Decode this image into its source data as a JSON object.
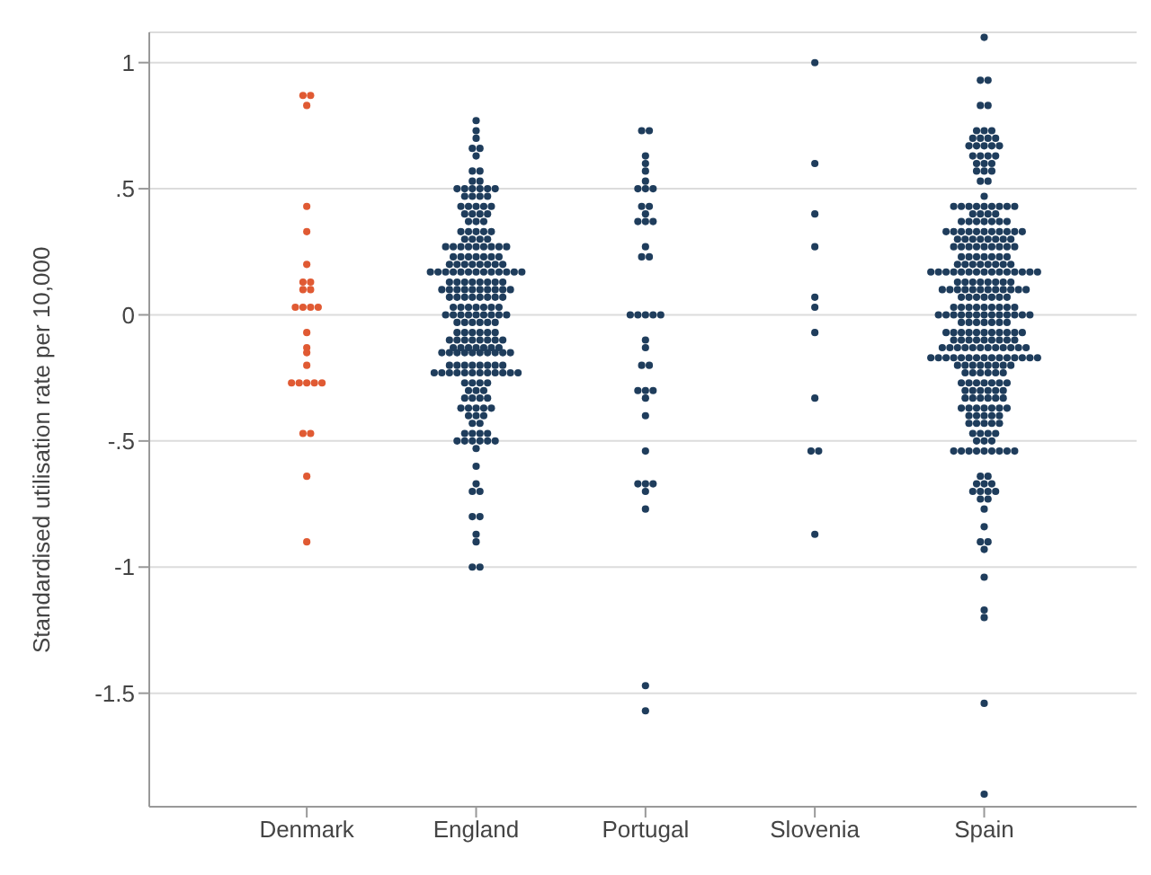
{
  "chart_data": {
    "type": "scatter",
    "ylabel": "Standardised utilisation rate per 10,000",
    "categories": [
      "Denmark",
      "England",
      "Portugal",
      "Slovenia",
      "Spain"
    ],
    "ylim": [
      -1.95,
      1.12
    ],
    "yticks": [
      {
        "value": -1.5,
        "label": "-1.5"
      },
      -1,
      {
        "value": -0.5,
        "label": "-.5"
      },
      0,
      {
        "value": 0.5,
        "label": ".5"
      },
      1
    ],
    "grid": "y",
    "legend": false,
    "marker": "circle",
    "series": [
      {
        "color": "#e05a33",
        "x": [
          "Denmark",
          "Denmark",
          "Denmark",
          "Denmark",
          "Denmark",
          "Denmark",
          "Denmark",
          "Denmark",
          "Denmark",
          "Denmark",
          "Denmark",
          "Denmark",
          "Denmark",
          "Denmark",
          "Denmark",
          "Denmark",
          "Denmark",
          "Denmark",
          "Denmark",
          "Denmark",
          "Denmark",
          "Denmark",
          "Denmark",
          "Denmark",
          "Denmark",
          "Denmark",
          "Denmark"
        ],
        "values": [
          0.87,
          0.87,
          0.83,
          0.43,
          0.33,
          0.2,
          0.13,
          0.13,
          0.1,
          0.1,
          0.03,
          0.03,
          0.03,
          0.03,
          -0.07,
          -0.13,
          -0.15,
          -0.2,
          -0.27,
          -0.27,
          -0.27,
          -0.27,
          -0.27,
          -0.47,
          -0.47,
          -0.64,
          -0.9
        ]
      },
      {
        "color": "#1f3d5c",
        "x": [
          "England",
          "England",
          "England",
          "England",
          "England",
          "England",
          "England",
          "England",
          "England",
          "England",
          "England",
          "England",
          "England",
          "England",
          "England",
          "England",
          "England",
          "England",
          "England",
          "England",
          "England",
          "England",
          "England",
          "England",
          "England",
          "England",
          "England",
          "England",
          "England",
          "England",
          "England",
          "England",
          "England",
          "England",
          "England",
          "England",
          "England",
          "England",
          "England",
          "England",
          "England",
          "England",
          "England",
          "England",
          "England",
          "England",
          "England",
          "England",
          "England",
          "England",
          "England",
          "England",
          "England",
          "England",
          "England",
          "England",
          "England",
          "England",
          "England",
          "England",
          "England",
          "England",
          "England",
          "England",
          "England",
          "England",
          "England",
          "England",
          "England",
          "England",
          "England",
          "England",
          "England",
          "England",
          "England",
          "England",
          "England",
          "England",
          "England",
          "England",
          "England",
          "England",
          "England",
          "England",
          "England",
          "England",
          "England",
          "England",
          "England",
          "England",
          "England",
          "England",
          "England",
          "England",
          "England",
          "England",
          "England",
          "England",
          "England",
          "England",
          "England",
          "England",
          "England",
          "England",
          "England",
          "England",
          "England",
          "England",
          "England",
          "England",
          "England",
          "England",
          "England",
          "England",
          "England",
          "England",
          "England",
          "England",
          "England",
          "England",
          "England",
          "England",
          "England",
          "England",
          "England",
          "England",
          "England",
          "England",
          "England",
          "England",
          "England",
          "England",
          "England",
          "England",
          "England",
          "England",
          "England",
          "England",
          "England",
          "England",
          "England",
          "England",
          "England",
          "England",
          "England",
          "England",
          "England",
          "England",
          "England",
          "England",
          "England",
          "England",
          "England",
          "England",
          "England",
          "England",
          "England",
          "England",
          "England",
          "England",
          "England",
          "England",
          "England",
          "England",
          "England",
          "England",
          "England",
          "England",
          "England",
          "England",
          "England",
          "England",
          "England",
          "England",
          "England",
          "England",
          "England",
          "England",
          "England",
          "England",
          "England",
          "England",
          "England",
          "England",
          "England",
          "England",
          "England",
          "England",
          "England",
          "England",
          "England",
          "England",
          "England",
          "England",
          "England",
          "England",
          "England",
          "England",
          "England",
          "England",
          "England",
          "England",
          "England",
          "England",
          "England",
          "England",
          "England",
          "England",
          "England",
          "England",
          "England",
          "England",
          "England",
          "England",
          "England",
          "England",
          "England",
          "England",
          "England"
        ],
        "values": [
          0.77,
          0.73,
          0.7,
          0.66,
          0.66,
          0.63,
          0.57,
          0.57,
          0.53,
          0.53,
          0.5,
          0.5,
          0.5,
          0.5,
          0.5,
          0.5,
          0.47,
          0.47,
          0.47,
          0.47,
          0.43,
          0.43,
          0.43,
          0.43,
          0.43,
          0.4,
          0.4,
          0.4,
          0.4,
          0.37,
          0.37,
          0.37,
          0.33,
          0.33,
          0.33,
          0.33,
          0.33,
          0.3,
          0.3,
          0.3,
          0.3,
          0.27,
          0.27,
          0.27,
          0.27,
          0.27,
          0.27,
          0.27,
          0.27,
          0.27,
          0.23,
          0.23,
          0.23,
          0.23,
          0.23,
          0.23,
          0.23,
          0.2,
          0.2,
          0.2,
          0.2,
          0.2,
          0.2,
          0.2,
          0.2,
          0.17,
          0.17,
          0.17,
          0.17,
          0.17,
          0.17,
          0.17,
          0.17,
          0.17,
          0.17,
          0.17,
          0.17,
          0.17,
          0.13,
          0.13,
          0.13,
          0.13,
          0.13,
          0.13,
          0.13,
          0.13,
          0.1,
          0.1,
          0.1,
          0.1,
          0.1,
          0.1,
          0.1,
          0.1,
          0.1,
          0.1,
          0.07,
          0.07,
          0.07,
          0.07,
          0.07,
          0.07,
          0.07,
          0.07,
          0.03,
          0.03,
          0.03,
          0.03,
          0.03,
          0.03,
          0.03,
          0,
          0,
          0,
          0,
          0,
          0,
          0,
          0,
          0,
          -0.03,
          -0.03,
          -0.03,
          -0.03,
          -0.03,
          -0.03,
          -0.07,
          -0.07,
          -0.07,
          -0.07,
          -0.07,
          -0.07,
          -0.1,
          -0.1,
          -0.1,
          -0.1,
          -0.1,
          -0.1,
          -0.1,
          -0.1,
          -0.13,
          -0.13,
          -0.13,
          -0.13,
          -0.13,
          -0.13,
          -0.13,
          -0.15,
          -0.15,
          -0.15,
          -0.15,
          -0.15,
          -0.15,
          -0.15,
          -0.15,
          -0.15,
          -0.15,
          -0.2,
          -0.2,
          -0.2,
          -0.2,
          -0.2,
          -0.2,
          -0.2,
          -0.2,
          -0.23,
          -0.23,
          -0.23,
          -0.23,
          -0.23,
          -0.23,
          -0.23,
          -0.23,
          -0.23,
          -0.23,
          -0.23,
          -0.23,
          -0.27,
          -0.27,
          -0.27,
          -0.27,
          -0.3,
          -0.3,
          -0.3,
          -0.33,
          -0.33,
          -0.33,
          -0.33,
          -0.37,
          -0.37,
          -0.37,
          -0.37,
          -0.37,
          -0.4,
          -0.4,
          -0.4,
          -0.43,
          -0.43,
          -0.47,
          -0.47,
          -0.47,
          -0.47,
          -0.5,
          -0.5,
          -0.5,
          -0.5,
          -0.5,
          -0.5,
          -0.53,
          -0.6,
          -0.67,
          -0.7,
          -0.7,
          -0.8,
          -0.8,
          -0.87,
          -0.9,
          -1,
          -1
        ]
      },
      {
        "color": "#1f3d5c",
        "x": [
          "Portugal",
          "Portugal",
          "Portugal",
          "Portugal",
          "Portugal",
          "Portugal",
          "Portugal",
          "Portugal",
          "Portugal",
          "Portugal",
          "Portugal",
          "Portugal",
          "Portugal",
          "Portugal",
          "Portugal",
          "Portugal",
          "Portugal",
          "Portugal",
          "Portugal",
          "Portugal",
          "Portugal",
          "Portugal",
          "Portugal",
          "Portugal",
          "Portugal",
          "Portugal",
          "Portugal",
          "Portugal",
          "Portugal",
          "Portugal",
          "Portugal",
          "Portugal",
          "Portugal",
          "Portugal",
          "Portugal",
          "Portugal",
          "Portugal",
          "Portugal",
          "Portugal",
          "Portugal"
        ],
        "values": [
          0.73,
          0.73,
          0.63,
          0.6,
          0.57,
          0.53,
          0.5,
          0.5,
          0.5,
          0.43,
          0.43,
          0.4,
          0.37,
          0.37,
          0.37,
          0.27,
          0.23,
          0.23,
          0,
          0,
          0,
          0,
          0,
          -0.1,
          -0.13,
          -0.2,
          -0.2,
          -0.3,
          -0.3,
          -0.3,
          -0.33,
          -0.4,
          -0.54,
          -0.67,
          -0.67,
          -0.67,
          -0.7,
          -0.77,
          -1.47,
          -1.57
        ]
      },
      {
        "color": "#1f3d5c",
        "x": [
          "Slovenia",
          "Slovenia",
          "Slovenia",
          "Slovenia",
          "Slovenia",
          "Slovenia",
          "Slovenia",
          "Slovenia",
          "Slovenia",
          "Slovenia",
          "Slovenia"
        ],
        "values": [
          1,
          0.6,
          0.4,
          0.27,
          0.07,
          0.03,
          -0.07,
          -0.33,
          -0.54,
          -0.54,
          -0.87
        ]
      },
      {
        "color": "#1f3d5c",
        "x": [
          "Spain",
          "Spain",
          "Spain",
          "Spain",
          "Spain",
          "Spain",
          "Spain",
          "Spain",
          "Spain",
          "Spain",
          "Spain",
          "Spain",
          "Spain",
          "Spain",
          "Spain",
          "Spain",
          "Spain",
          "Spain",
          "Spain",
          "Spain",
          "Spain",
          "Spain",
          "Spain",
          "Spain",
          "Spain",
          "Spain",
          "Spain",
          "Spain",
          "Spain",
          "Spain",
          "Spain",
          "Spain",
          "Spain",
          "Spain",
          "Spain",
          "Spain",
          "Spain",
          "Spain",
          "Spain",
          "Spain",
          "Spain",
          "Spain",
          "Spain",
          "Spain",
          "Spain",
          "Spain",
          "Spain",
          "Spain",
          "Spain",
          "Spain",
          "Spain",
          "Spain",
          "Spain",
          "Spain",
          "Spain",
          "Spain",
          "Spain",
          "Spain",
          "Spain",
          "Spain",
          "Spain",
          "Spain",
          "Spain",
          "Spain",
          "Spain",
          "Spain",
          "Spain",
          "Spain",
          "Spain",
          "Spain",
          "Spain",
          "Spain",
          "Spain",
          "Spain",
          "Spain",
          "Spain",
          "Spain",
          "Spain",
          "Spain",
          "Spain",
          "Spain",
          "Spain",
          "Spain",
          "Spain",
          "Spain",
          "Spain",
          "Spain",
          "Spain",
          "Spain",
          "Spain",
          "Spain",
          "Spain",
          "Spain",
          "Spain",
          "Spain",
          "Spain",
          "Spain",
          "Spain",
          "Spain",
          "Spain",
          "Spain",
          "Spain",
          "Spain",
          "Spain",
          "Spain",
          "Spain",
          "Spain",
          "Spain",
          "Spain",
          "Spain",
          "Spain",
          "Spain",
          "Spain",
          "Spain",
          "Spain",
          "Spain",
          "Spain",
          "Spain",
          "Spain",
          "Spain",
          "Spain",
          "Spain",
          "Spain",
          "Spain",
          "Spain",
          "Spain",
          "Spain",
          "Spain",
          "Spain",
          "Spain",
          "Spain",
          "Spain",
          "Spain",
          "Spain",
          "Spain",
          "Spain",
          "Spain",
          "Spain",
          "Spain",
          "Spain",
          "Spain",
          "Spain",
          "Spain",
          "Spain",
          "Spain",
          "Spain",
          "Spain",
          "Spain",
          "Spain",
          "Spain",
          "Spain",
          "Spain",
          "Spain",
          "Spain",
          "Spain",
          "Spain",
          "Spain",
          "Spain",
          "Spain",
          "Spain",
          "Spain",
          "Spain",
          "Spain",
          "Spain",
          "Spain",
          "Spain",
          "Spain",
          "Spain",
          "Spain",
          "Spain",
          "Spain",
          "Spain",
          "Spain",
          "Spain",
          "Spain",
          "Spain",
          "Spain",
          "Spain",
          "Spain",
          "Spain",
          "Spain",
          "Spain",
          "Spain",
          "Spain",
          "Spain",
          "Spain",
          "Spain",
          "Spain",
          "Spain",
          "Spain",
          "Spain",
          "Spain",
          "Spain",
          "Spain",
          "Spain",
          "Spain",
          "Spain",
          "Spain",
          "Spain",
          "Spain",
          "Spain",
          "Spain",
          "Spain",
          "Spain",
          "Spain",
          "Spain",
          "Spain",
          "Spain",
          "Spain",
          "Spain",
          "Spain",
          "Spain",
          "Spain",
          "Spain",
          "Spain",
          "Spain",
          "Spain",
          "Spain",
          "Spain",
          "Spain",
          "Spain",
          "Spain",
          "Spain",
          "Spain",
          "Spain",
          "Spain",
          "Spain",
          "Spain",
          "Spain",
          "Spain",
          "Spain",
          "Spain",
          "Spain",
          "Spain",
          "Spain",
          "Spain",
          "Spain",
          "Spain",
          "Spain",
          "Spain",
          "Spain",
          "Spain",
          "Spain",
          "Spain",
          "Spain",
          "Spain",
          "Spain",
          "Spain",
          "Spain",
          "Spain",
          "Spain",
          "Spain",
          "Spain",
          "Spain",
          "Spain",
          "Spain",
          "Spain",
          "Spain",
          "Spain",
          "Spain",
          "Spain",
          "Spain",
          "Spain",
          "Spain",
          "Spain",
          "Spain",
          "Spain",
          "Spain",
          "Spain",
          "Spain",
          "Spain",
          "Spain",
          "Spain",
          "Spain",
          "Spain",
          "Spain",
          "Spain",
          "Spain",
          "Spain",
          "Spain",
          "Spain",
          "Spain",
          "Spain",
          "Spain",
          "Spain",
          "Spain",
          "Spain",
          "Spain",
          "Spain",
          "Spain",
          "Spain",
          "Spain",
          "Spain",
          "Spain",
          "Spain",
          "Spain",
          "Spain",
          "Spain"
        ],
        "values": [
          1.1,
          0.93,
          0.93,
          0.83,
          0.83,
          0.73,
          0.73,
          0.73,
          0.7,
          0.7,
          0.7,
          0.7,
          0.67,
          0.67,
          0.67,
          0.67,
          0.67,
          0.63,
          0.63,
          0.63,
          0.63,
          0.6,
          0.6,
          0.6,
          0.57,
          0.57,
          0.57,
          0.53,
          0.53,
          0.47,
          0.43,
          0.43,
          0.43,
          0.43,
          0.43,
          0.43,
          0.43,
          0.43,
          0.43,
          0.4,
          0.4,
          0.4,
          0.4,
          0.37,
          0.37,
          0.37,
          0.37,
          0.37,
          0.37,
          0.37,
          0.33,
          0.33,
          0.33,
          0.33,
          0.33,
          0.33,
          0.33,
          0.33,
          0.33,
          0.33,
          0.33,
          0.3,
          0.3,
          0.3,
          0.3,
          0.3,
          0.3,
          0.3,
          0.3,
          0.27,
          0.27,
          0.27,
          0.27,
          0.27,
          0.27,
          0.27,
          0.27,
          0.27,
          0.23,
          0.23,
          0.23,
          0.23,
          0.23,
          0.23,
          0.23,
          0.2,
          0.2,
          0.2,
          0.2,
          0.2,
          0.2,
          0.2,
          0.2,
          0.17,
          0.17,
          0.17,
          0.17,
          0.17,
          0.17,
          0.17,
          0.17,
          0.17,
          0.17,
          0.17,
          0.17,
          0.17,
          0.17,
          0.17,
          0.13,
          0.13,
          0.13,
          0.13,
          0.13,
          0.13,
          0.13,
          0.13,
          0.1,
          0.1,
          0.1,
          0.1,
          0.1,
          0.1,
          0.1,
          0.1,
          0.1,
          0.1,
          0.1,
          0.1,
          0.07,
          0.07,
          0.07,
          0.07,
          0.07,
          0.07,
          0.07,
          0.03,
          0.03,
          0.03,
          0.03,
          0.03,
          0.03,
          0.03,
          0.03,
          0.03,
          0,
          0,
          0,
          0,
          0,
          0,
          0,
          0,
          0,
          0,
          0,
          0,
          0,
          -0.03,
          -0.03,
          -0.03,
          -0.03,
          -0.03,
          -0.03,
          -0.03,
          -0.07,
          -0.07,
          -0.07,
          -0.07,
          -0.07,
          -0.07,
          -0.07,
          -0.07,
          -0.07,
          -0.07,
          -0.07,
          -0.1,
          -0.1,
          -0.1,
          -0.1,
          -0.1,
          -0.1,
          -0.1,
          -0.1,
          -0.1,
          -0.13,
          -0.13,
          -0.13,
          -0.13,
          -0.13,
          -0.13,
          -0.13,
          -0.13,
          -0.13,
          -0.13,
          -0.13,
          -0.13,
          -0.17,
          -0.17,
          -0.17,
          -0.17,
          -0.17,
          -0.17,
          -0.17,
          -0.17,
          -0.17,
          -0.17,
          -0.17,
          -0.17,
          -0.17,
          -0.17,
          -0.17,
          -0.2,
          -0.2,
          -0.2,
          -0.2,
          -0.2,
          -0.2,
          -0.2,
          -0.2,
          -0.23,
          -0.23,
          -0.23,
          -0.23,
          -0.23,
          -0.23,
          -0.27,
          -0.27,
          -0.27,
          -0.27,
          -0.27,
          -0.27,
          -0.27,
          -0.3,
          -0.3,
          -0.3,
          -0.3,
          -0.3,
          -0.3,
          -0.33,
          -0.33,
          -0.33,
          -0.33,
          -0.33,
          -0.33,
          -0.37,
          -0.37,
          -0.37,
          -0.37,
          -0.37,
          -0.37,
          -0.37,
          -0.4,
          -0.4,
          -0.4,
          -0.4,
          -0.4,
          -0.43,
          -0.43,
          -0.43,
          -0.43,
          -0.43,
          -0.47,
          -0.47,
          -0.47,
          -0.47,
          -0.5,
          -0.5,
          -0.5,
          -0.54,
          -0.54,
          -0.54,
          -0.54,
          -0.54,
          -0.54,
          -0.54,
          -0.54,
          -0.54,
          -0.64,
          -0.64,
          -0.67,
          -0.67,
          -0.67,
          -0.7,
          -0.7,
          -0.7,
          -0.7,
          -0.73,
          -0.73,
          -0.77,
          -0.84,
          -0.9,
          -0.9,
          -0.93,
          -1.04,
          -1.17,
          -1.2,
          -1.54,
          -1.9
        ]
      }
    ]
  }
}
